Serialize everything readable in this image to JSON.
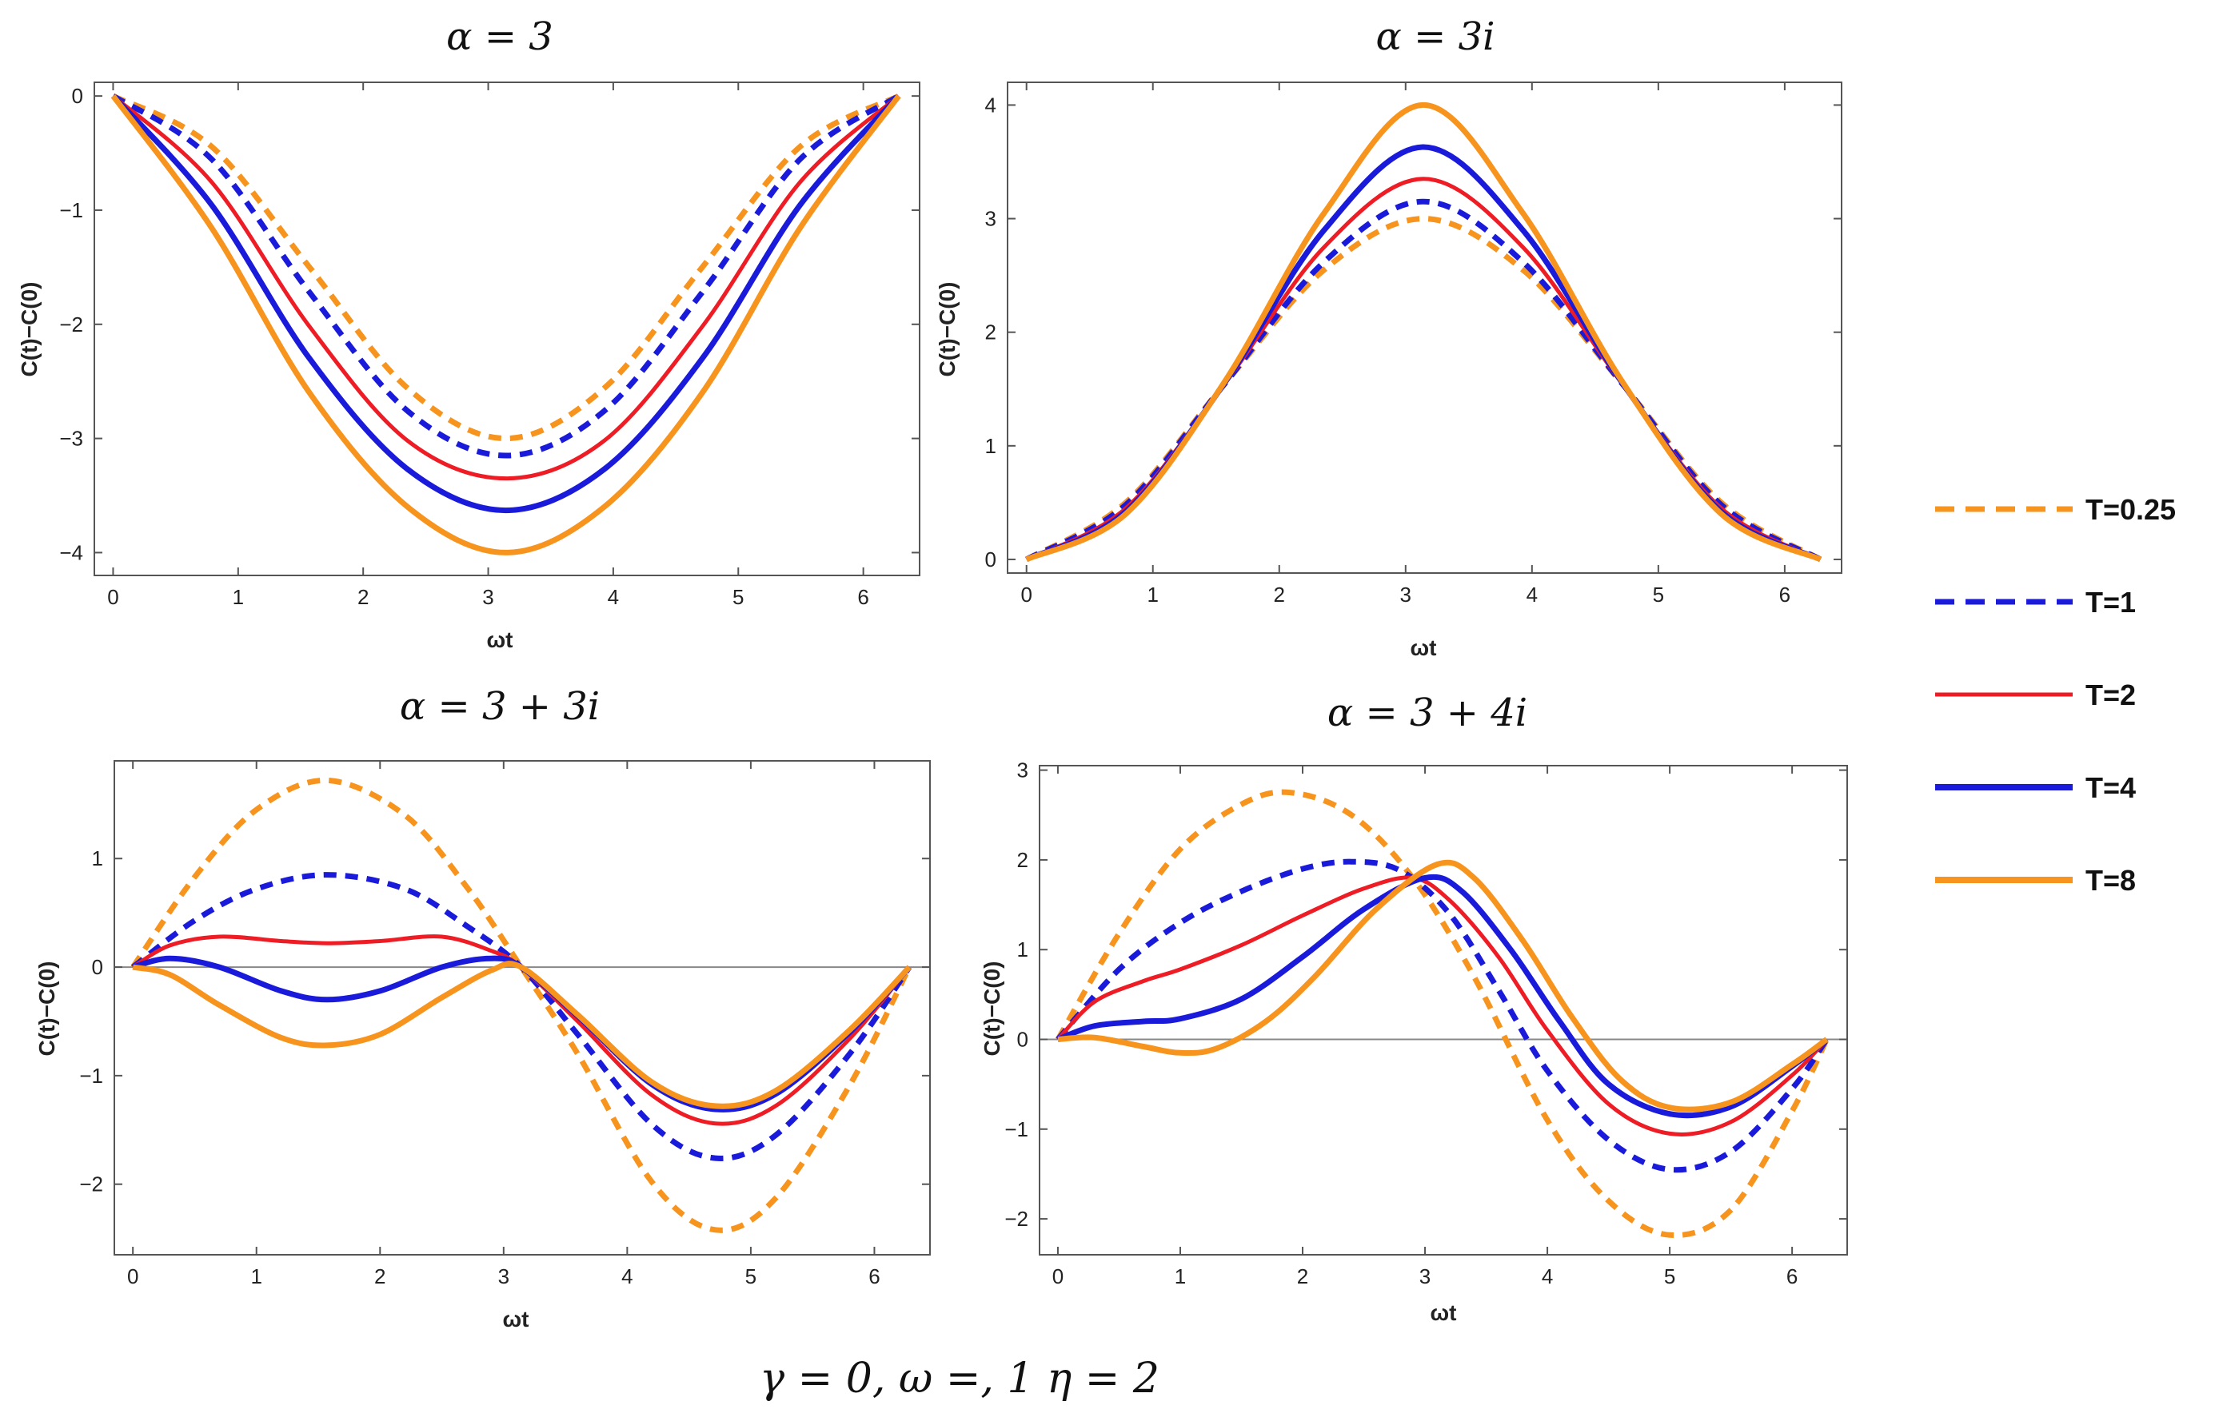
{
  "caption": "γ = 0, ω =, 1 η = 2",
  "legend": [
    {
      "label": "T=0.25",
      "color": "#f7941d",
      "dash": true,
      "width": 7
    },
    {
      "label": "T=1",
      "color": "#1a1adb",
      "dash": true,
      "width": 7
    },
    {
      "label": "T=2",
      "color": "#ee1c24",
      "dash": false,
      "width": 5
    },
    {
      "label": "T=4",
      "color": "#1a1adb",
      "dash": false,
      "width": 7
    },
    {
      "label": "T=8",
      "color": "#f7941d",
      "dash": false,
      "width": 7
    }
  ],
  "chart_data": [
    {
      "type": "line",
      "title": "α = 3",
      "xlabel": "ωt",
      "ylabel": "C(t)−C(0)",
      "xlim": [
        -0.15,
        6.45
      ],
      "ylim": [
        -4.2,
        0.12
      ],
      "xticks": [
        0,
        1,
        2,
        3,
        4,
        5,
        6
      ],
      "xtick_labels": [
        "0",
        "1",
        "2",
        "3",
        "4",
        "5",
        "6"
      ],
      "yticks": [
        0,
        -1,
        -2,
        -3,
        -4
      ],
      "ytick_labels": [
        "0",
        "−1",
        "−2",
        "−3",
        "−4"
      ],
      "zero_line": false,
      "series": [
        {
          "name": "T=0.25",
          "x": [
            0,
            0.785,
            1.571,
            2.356,
            3.142,
            3.927,
            4.712,
            5.498,
            6.283
          ],
          "y": [
            0,
            -0.44,
            -1.5,
            -2.56,
            -3.0,
            -2.56,
            -1.5,
            -0.44,
            0
          ]
        },
        {
          "name": "T=1",
          "x": [
            0,
            0.785,
            1.571,
            2.356,
            3.142,
            3.927,
            4.712,
            5.498,
            6.283
          ],
          "y": [
            0,
            -0.55,
            -1.72,
            -2.76,
            -3.15,
            -2.76,
            -1.72,
            -0.55,
            0
          ]
        },
        {
          "name": "T=2",
          "x": [
            0,
            0.785,
            1.571,
            2.356,
            3.142,
            3.927,
            4.712,
            5.498,
            6.283
          ],
          "y": [
            0,
            -0.75,
            -2.02,
            -3.02,
            -3.35,
            -3.02,
            -2.02,
            -0.75,
            0
          ]
        },
        {
          "name": "T=4",
          "x": [
            0,
            0.785,
            1.571,
            2.356,
            3.142,
            3.927,
            4.712,
            5.498,
            6.283
          ],
          "y": [
            0,
            -0.95,
            -2.3,
            -3.27,
            -3.63,
            -3.27,
            -2.3,
            -0.95,
            0
          ]
        },
        {
          "name": "T=8",
          "x": [
            0,
            0.785,
            1.571,
            2.356,
            3.142,
            3.927,
            4.712,
            5.498,
            6.283
          ],
          "y": [
            0,
            -1.15,
            -2.6,
            -3.6,
            -4.0,
            -3.6,
            -2.6,
            -1.15,
            0
          ]
        }
      ]
    },
    {
      "type": "line",
      "title": "α = 3i",
      "xlabel": "ωt",
      "ylabel": "C(t)−C(0)",
      "xlim": [
        -0.15,
        6.45
      ],
      "ylim": [
        -0.12,
        4.2
      ],
      "xticks": [
        0,
        1,
        2,
        3,
        4,
        5,
        6
      ],
      "xtick_labels": [
        "0",
        "1",
        "2",
        "3",
        "4",
        "5",
        "6"
      ],
      "yticks": [
        0,
        1,
        2,
        3,
        4
      ],
      "ytick_labels": [
        "0",
        "1",
        "2",
        "3",
        "4"
      ],
      "zero_line": false,
      "series": [
        {
          "name": "T=0.25",
          "x": [
            0,
            0.785,
            1.571,
            2.356,
            3.142,
            3.927,
            4.712,
            5.498,
            6.283
          ],
          "y": [
            0,
            0.5,
            1.55,
            2.55,
            3.0,
            2.55,
            1.55,
            0.5,
            0
          ]
        },
        {
          "name": "T=1",
          "x": [
            0,
            0.785,
            1.571,
            2.356,
            3.142,
            3.927,
            4.712,
            5.498,
            6.283
          ],
          "y": [
            0,
            0.48,
            1.55,
            2.62,
            3.15,
            2.62,
            1.55,
            0.48,
            0
          ]
        },
        {
          "name": "T=2",
          "x": [
            0,
            0.785,
            1.571,
            2.356,
            3.142,
            3.927,
            4.712,
            5.498,
            6.283
          ],
          "y": [
            0,
            0.45,
            1.55,
            2.75,
            3.35,
            2.75,
            1.55,
            0.45,
            0
          ]
        },
        {
          "name": "T=4",
          "x": [
            0,
            0.785,
            1.571,
            2.356,
            3.142,
            3.927,
            4.712,
            5.498,
            6.283
          ],
          "y": [
            0,
            0.42,
            1.56,
            2.9,
            3.63,
            2.9,
            1.56,
            0.42,
            0
          ]
        },
        {
          "name": "T=8",
          "x": [
            0,
            0.785,
            1.571,
            2.356,
            3.142,
            3.927,
            4.712,
            5.498,
            6.283
          ],
          "y": [
            0,
            0.4,
            1.57,
            3.05,
            4.0,
            3.05,
            1.57,
            0.4,
            0
          ]
        }
      ]
    },
    {
      "type": "line",
      "title": "α = 3 + 3i",
      "xlabel": "ωt",
      "ylabel": "C(t)−C(0)",
      "xlim": [
        -0.15,
        6.45
      ],
      "ylim": [
        -2.65,
        1.9
      ],
      "xticks": [
        0,
        1,
        2,
        3,
        4,
        5,
        6
      ],
      "xtick_labels": [
        "0",
        "1",
        "2",
        "3",
        "4",
        "5",
        "6"
      ],
      "yticks": [
        1,
        0,
        -1,
        -2
      ],
      "ytick_labels": [
        "1",
        "0",
        "−1",
        "−2"
      ],
      "zero_line": true,
      "series": [
        {
          "name": "T=0.25",
          "x": [
            0,
            0.5,
            1.0,
            1.571,
            2.2,
            2.7,
            3.142,
            3.6,
            4.2,
            4.712,
            5.2,
            5.8,
            6.283
          ],
          "y": [
            0,
            0.83,
            1.45,
            1.72,
            1.4,
            0.74,
            0,
            -0.8,
            -1.98,
            -2.42,
            -2.13,
            -1.09,
            0
          ]
        },
        {
          "name": "T=1",
          "x": [
            0,
            0.5,
            1.0,
            1.571,
            2.2,
            2.7,
            3.142,
            3.6,
            4.2,
            4.712,
            5.2,
            5.8,
            6.283
          ],
          "y": [
            0,
            0.43,
            0.72,
            0.85,
            0.72,
            0.38,
            0,
            -0.62,
            -1.45,
            -1.76,
            -1.55,
            -0.8,
            0
          ]
        },
        {
          "name": "T=2",
          "x": [
            0,
            0.3,
            0.7,
            1.2,
            1.571,
            2.0,
            2.5,
            2.9,
            3.142,
            3.6,
            4.2,
            4.712,
            5.2,
            5.8,
            6.283
          ],
          "y": [
            0,
            0.2,
            0.28,
            0.24,
            0.22,
            0.24,
            0.28,
            0.15,
            0,
            -0.5,
            -1.18,
            -1.44,
            -1.28,
            -0.66,
            0
          ]
        },
        {
          "name": "T=4",
          "x": [
            0,
            0.3,
            0.7,
            1.2,
            1.571,
            2.0,
            2.5,
            2.9,
            3.142,
            3.6,
            4.2,
            4.712,
            5.2,
            5.8,
            6.283
          ],
          "y": [
            0,
            0.08,
            0.0,
            -0.22,
            -0.3,
            -0.22,
            0.0,
            0.08,
            0,
            -0.45,
            -1.08,
            -1.31,
            -1.17,
            -0.6,
            0
          ]
        },
        {
          "name": "T=8",
          "x": [
            0,
            0.3,
            0.7,
            1.2,
            1.571,
            2.0,
            2.5,
            2.9,
            3.142,
            3.6,
            4.2,
            4.712,
            5.2,
            5.8,
            6.283
          ],
          "y": [
            0,
            -0.07,
            -0.35,
            -0.65,
            -0.72,
            -0.62,
            -0.28,
            -0.03,
            0,
            -0.44,
            -1.06,
            -1.28,
            -1.14,
            -0.58,
            0
          ]
        }
      ]
    },
    {
      "type": "line",
      "title": "α = 3 + 4i",
      "xlabel": "ωt",
      "ylabel": "C(t)−C(0)",
      "xlim": [
        -0.15,
        6.45
      ],
      "ylim": [
        -2.4,
        3.05
      ],
      "xticks": [
        0,
        1,
        2,
        3,
        4,
        5,
        6
      ],
      "xtick_labels": [
        "0",
        "1",
        "2",
        "3",
        "4",
        "5",
        "6"
      ],
      "yticks": [
        3,
        2,
        1,
        0,
        -1,
        -2
      ],
      "ytick_labels": [
        "3",
        "2",
        "1",
        "0",
        "−1",
        "−2"
      ],
      "zero_line": true,
      "series": [
        {
          "name": "T=0.25",
          "x": [
            0,
            0.5,
            1.0,
            1.5,
            1.9,
            2.4,
            2.9,
            3.4,
            4.0,
            4.5,
            5.0,
            5.5,
            6.0,
            6.283
          ],
          "y": [
            0,
            1.18,
            2.12,
            2.62,
            2.75,
            2.5,
            1.8,
            0.7,
            -0.9,
            -1.8,
            -2.18,
            -1.9,
            -0.8,
            0
          ]
        },
        {
          "name": "T=1",
          "x": [
            0,
            0.5,
            1.0,
            1.5,
            2.0,
            2.4,
            2.8,
            3.2,
            3.6,
            4.0,
            4.5,
            5.0,
            5.5,
            6.0,
            6.283
          ],
          "y": [
            0,
            0.78,
            1.3,
            1.65,
            1.9,
            1.98,
            1.88,
            1.4,
            0.55,
            -0.35,
            -1.12,
            -1.45,
            -1.25,
            -0.55,
            0
          ]
        },
        {
          "name": "T=2",
          "x": [
            0,
            0.3,
            0.7,
            1.0,
            1.5,
            2.0,
            2.5,
            2.9,
            3.2,
            3.6,
            4.0,
            4.5,
            5.0,
            5.5,
            6.0,
            6.283
          ],
          "y": [
            0,
            0.42,
            0.65,
            0.78,
            1.05,
            1.38,
            1.68,
            1.8,
            1.55,
            0.92,
            0.1,
            -0.72,
            -1.05,
            -0.92,
            -0.4,
            0
          ]
        },
        {
          "name": "T=4",
          "x": [
            0,
            0.3,
            0.7,
            1.0,
            1.5,
            2.0,
            2.5,
            3.0,
            3.3,
            3.7,
            4.1,
            4.5,
            5.0,
            5.5,
            6.0,
            6.283
          ],
          "y": [
            0,
            0.15,
            0.2,
            0.23,
            0.45,
            0.92,
            1.45,
            1.8,
            1.65,
            1.0,
            0.2,
            -0.5,
            -0.83,
            -0.75,
            -0.3,
            0
          ]
        },
        {
          "name": "T=8",
          "x": [
            0,
            0.3,
            0.7,
            1.0,
            1.3,
            1.7,
            2.1,
            2.6,
            3.1,
            3.4,
            3.8,
            4.2,
            4.6,
            5.0,
            5.5,
            6.0,
            6.283
          ],
          "y": [
            0,
            0.02,
            -0.08,
            -0.15,
            -0.1,
            0.2,
            0.7,
            1.45,
            1.95,
            1.8,
            1.1,
            0.25,
            -0.45,
            -0.76,
            -0.7,
            -0.28,
            0
          ]
        }
      ]
    }
  ]
}
